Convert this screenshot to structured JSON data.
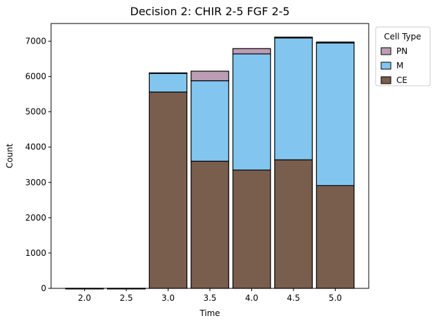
{
  "chart_data": {
    "type": "bar",
    "stacked": true,
    "title": "Decision 2: CHIR 2-5 FGF 2-5",
    "xlabel": "Time",
    "ylabel": "Count",
    "x": [
      2.0,
      2.5,
      3.0,
      3.5,
      4.0,
      4.5,
      5.0
    ],
    "x_tick_labels": [
      "2.0",
      "2.5",
      "3.0",
      "3.5",
      "4.0",
      "4.5",
      "5.0"
    ],
    "xlim": [
      1.6,
      5.4
    ],
    "ylim": [
      0,
      7500
    ],
    "y_ticks": [
      0,
      1000,
      2000,
      3000,
      4000,
      5000,
      6000,
      7000
    ],
    "y_tick_labels": [
      "0",
      "1000",
      "2000",
      "3000",
      "4000",
      "5000",
      "6000",
      "7000"
    ],
    "bar_width": 0.45,
    "grid": false,
    "legend": {
      "title": "Cell Type",
      "placement": "outside-top-right",
      "entries": [
        "PN",
        "M",
        "CE"
      ]
    },
    "series": [
      {
        "name": "CE",
        "color": "#795d4d",
        "values": [
          0,
          0,
          5560,
          3600,
          3350,
          3640,
          2910
        ]
      },
      {
        "name": "M",
        "color": "#82c6ef",
        "values": [
          0,
          0,
          540,
          2280,
          3290,
          3450,
          4040
        ]
      },
      {
        "name": "PN",
        "color": "#bc9db4",
        "values": [
          0,
          0,
          0,
          270,
          150,
          25,
          25
        ]
      }
    ]
  }
}
